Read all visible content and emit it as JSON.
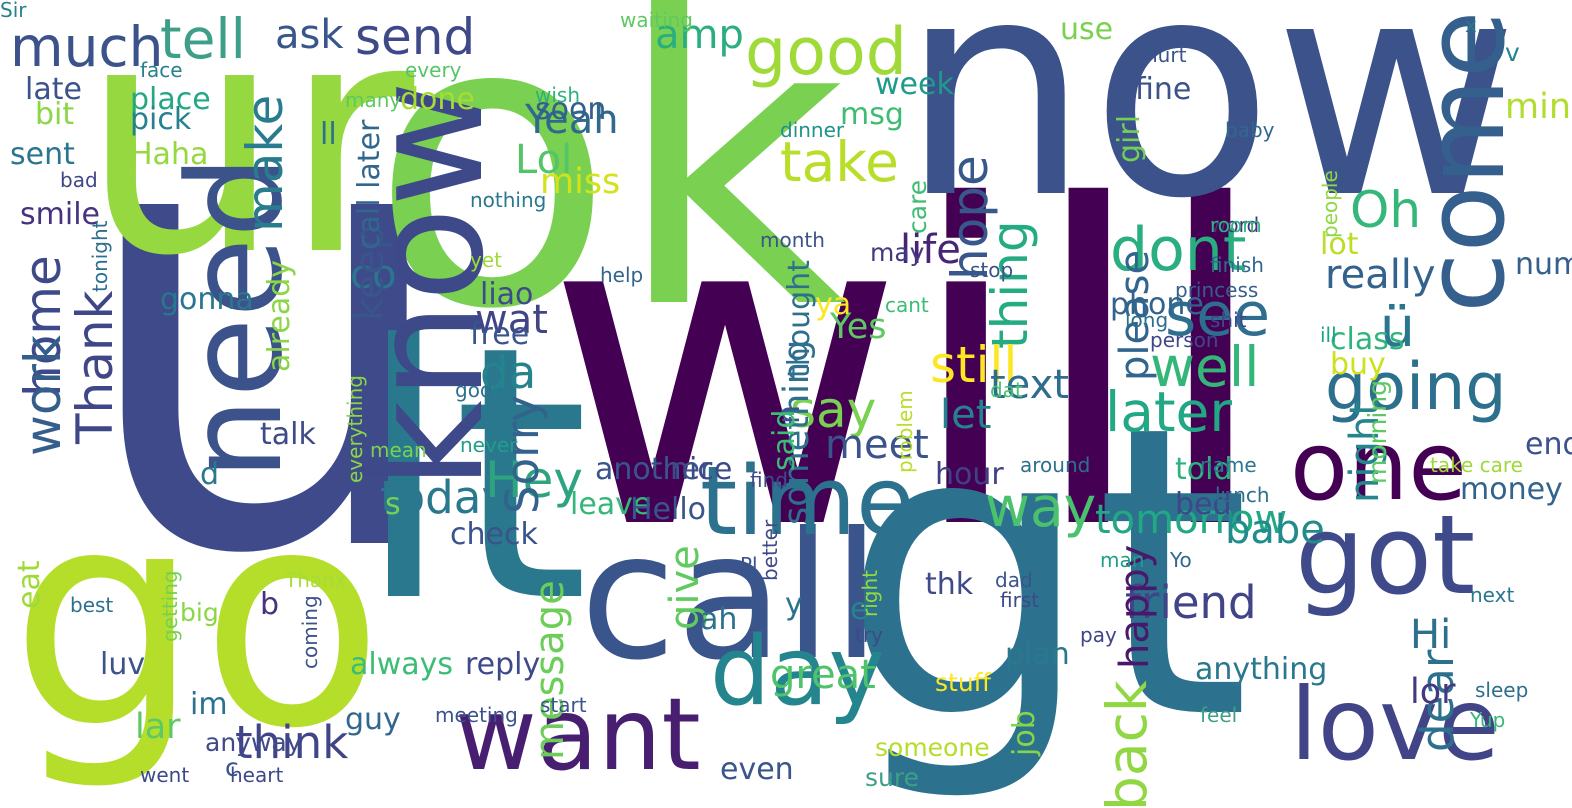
{
  "words": [
    {
      "text": "u",
      "color": "#3e4a89",
      "vertical": false
    },
    {
      "text": "will",
      "color": "#440154",
      "vertical": false
    },
    {
      "text": "now",
      "color": "#3b528b",
      "vertical": false
    },
    {
      "text": "ok",
      "color": "#7ad151",
      "vertical": false
    },
    {
      "text": "lt",
      "color": "#2a788e",
      "vertical": false
    },
    {
      "text": "gt",
      "color": "#2c728e",
      "vertical": false
    },
    {
      "text": "go",
      "color": "#b5de2b",
      "vertical": false
    },
    {
      "text": "ur",
      "color": "#95d840",
      "vertical": false
    },
    {
      "text": "call",
      "color": "#3a548c",
      "vertical": false
    },
    {
      "text": "know",
      "color": "#3e4989",
      "vertical": true
    },
    {
      "text": "need",
      "color": "#3b528b",
      "vertical": true
    },
    {
      "text": "come",
      "color": "#355f8d",
      "vertical": true
    },
    {
      "text": "got",
      "color": "#3e4a89",
      "vertical": false
    },
    {
      "text": "time",
      "color": "#2c728e",
      "vertical": false
    },
    {
      "text": "day",
      "color": "#25858e",
      "vertical": false
    },
    {
      "text": "want",
      "color": "#481f70",
      "vertical": false
    },
    {
      "text": "love",
      "color": "#414487",
      "vertical": false
    },
    {
      "text": "one",
      "color": "#440154",
      "vertical": false
    },
    {
      "text": "good",
      "color": "#a0da39",
      "vertical": false
    },
    {
      "text": "going",
      "color": "#2d708e",
      "vertical": false
    },
    {
      "text": "much",
      "color": "#3b528b",
      "vertical": false
    },
    {
      "text": "tell",
      "color": "#3e9f88",
      "vertical": false
    },
    {
      "text": "send",
      "color": "#3e4989",
      "vertical": false
    },
    {
      "text": "ask",
      "color": "#39568c",
      "vertical": false
    },
    {
      "text": "take",
      "color": "#b8de29",
      "vertical": false
    },
    {
      "text": "home",
      "color": "#3e4989",
      "vertical": true
    },
    {
      "text": "make",
      "color": "#287c8e",
      "vertical": true
    },
    {
      "text": "hope",
      "color": "#38588c",
      "vertical": true
    },
    {
      "text": "thing",
      "color": "#25ab82",
      "vertical": true
    },
    {
      "text": "dont",
      "color": "#29af7f",
      "vertical": false
    },
    {
      "text": "see",
      "color": "#2e6e8e",
      "vertical": false
    },
    {
      "text": "ü",
      "color": "#2a768e",
      "vertical": false
    },
    {
      "text": "Oh",
      "color": "#35b779",
      "vertical": false
    },
    {
      "text": "well",
      "color": "#34b679",
      "vertical": false
    },
    {
      "text": "later",
      "color": "#22a884",
      "vertical": false
    },
    {
      "text": "say",
      "color": "#7ad151",
      "vertical": false
    },
    {
      "text": "da",
      "color": "#25838e",
      "vertical": false
    },
    {
      "text": "work",
      "color": "#355e8d",
      "vertical": true
    },
    {
      "text": "Thank",
      "color": "#3f4788",
      "vertical": true
    },
    {
      "text": "Hey",
      "color": "#2ea37f",
      "vertical": false
    },
    {
      "text": "Sorry",
      "color": "#33628d",
      "vertical": true
    },
    {
      "text": "way",
      "color": "#4ac16d",
      "vertical": false
    },
    {
      "text": "still",
      "color": "#fde725",
      "vertical": false
    },
    {
      "text": "back",
      "color": "#90d743",
      "vertical": true
    },
    {
      "text": "think",
      "color": "#404588",
      "vertical": false
    },
    {
      "text": "today",
      "color": "#2a788e",
      "vertical": false
    },
    {
      "text": "give",
      "color": "#60ca60",
      "vertical": true
    },
    {
      "text": "friend",
      "color": "#414487",
      "vertical": false
    },
    {
      "text": "dear",
      "color": "#2d708e",
      "vertical": true
    },
    {
      "text": "lor",
      "color": "#453781",
      "vertical": false
    },
    {
      "text": "Hi",
      "color": "#2e6f8e",
      "vertical": false
    },
    {
      "text": "great",
      "color": "#4ec36b",
      "vertical": false
    },
    {
      "text": "tomorrow",
      "color": "#22a884",
      "vertical": false
    },
    {
      "text": "message",
      "color": "#6cce59",
      "vertical": true
    },
    {
      "text": "happy",
      "color": "#48186a",
      "vertical": true
    },
    {
      "text": "babe",
      "color": "#228c8d",
      "vertical": false
    },
    {
      "text": "night",
      "color": "#25858e",
      "vertical": true
    },
    {
      "text": "really",
      "color": "#33638d",
      "vertical": false
    },
    {
      "text": "text",
      "color": "#2f6c8e",
      "vertical": false
    },
    {
      "text": "please",
      "color": "#32658e",
      "vertical": true
    },
    {
      "text": "let",
      "color": "#27808e",
      "vertical": false
    },
    {
      "text": "life",
      "color": "#482475",
      "vertical": false
    },
    {
      "text": "meet",
      "color": "#3a538b",
      "vertical": false
    },
    {
      "text": "wat",
      "color": "#414487",
      "vertical": false
    },
    {
      "text": "Yeah",
      "color": "#31688e",
      "vertical": false
    },
    {
      "text": "Lol",
      "color": "#52c569",
      "vertical": false
    },
    {
      "text": "miss",
      "color": "#d2e21b",
      "vertical": false
    },
    {
      "text": "amp",
      "color": "#29af7f",
      "vertical": false
    },
    {
      "text": "something",
      "color": "#2e6f8e",
      "vertical": true
    },
    {
      "text": "Yes",
      "color": "#5ec962",
      "vertical": false
    },
    {
      "text": "co",
      "color": "#2b758e",
      "vertical": false
    },
    {
      "text": "keep",
      "color": "#3a548c",
      "vertical": true
    },
    {
      "text": "n",
      "color": "#3a548c",
      "vertical": true
    },
    {
      "text": "mind",
      "color": "#b0dd2f",
      "vertical": false
    },
    {
      "text": "said",
      "color": "#3dbc74",
      "vertical": true
    },
    {
      "text": "lot",
      "color": "#bade28",
      "vertical": false
    },
    {
      "text": "phone",
      "color": "#33638d",
      "vertical": false
    },
    {
      "text": "fine",
      "color": "#3b528b",
      "vertical": false
    },
    {
      "text": "msg",
      "color": "#3fbc73",
      "vertical": false
    },
    {
      "text": "week",
      "color": "#1e9b8a",
      "vertical": false
    },
    {
      "text": "done",
      "color": "#a8db34",
      "vertical": false
    },
    {
      "text": "place",
      "color": "#22a884",
      "vertical": false
    },
    {
      "text": "pick",
      "color": "#26818e",
      "vertical": false
    },
    {
      "text": "Haha",
      "color": "#95d840",
      "vertical": false
    },
    {
      "text": "soon",
      "color": "#355f8d",
      "vertical": false
    },
    {
      "text": "bit",
      "color": "#8bd646",
      "vertical": false
    },
    {
      "text": "late",
      "color": "#3b528b",
      "vertical": false
    },
    {
      "text": "sent",
      "color": "#2a768e",
      "vertical": false
    },
    {
      "text": "smile",
      "color": "#46327e",
      "vertical": false
    },
    {
      "text": "face",
      "color": "#26818e",
      "vertical": false
    },
    {
      "text": "every",
      "color": "#55c667",
      "vertical": false
    },
    {
      "text": "waiting",
      "color": "#5ec962",
      "vertical": false
    },
    {
      "text": "many",
      "color": "#5ec962",
      "vertical": false
    },
    {
      "text": "wish",
      "color": "#2db27d",
      "vertical": false
    },
    {
      "text": "dinner",
      "color": "#20928c",
      "vertical": false
    },
    {
      "text": "hurt",
      "color": "#3b528b",
      "vertical": false
    },
    {
      "text": "x",
      "color": "#2a778e",
      "vertical": false
    },
    {
      "text": "cant",
      "color": "#3dbc74",
      "vertical": false
    },
    {
      "text": "baby",
      "color": "#31688e",
      "vertical": false
    },
    {
      "text": "girl",
      "color": "#73d056",
      "vertical": true
    },
    {
      "text": "v",
      "color": "#25848e",
      "vertical": false
    },
    {
      "text": "people",
      "color": "#8fd744",
      "vertical": true
    },
    {
      "text": "use",
      "color": "#7ad151",
      "vertical": false
    },
    {
      "text": "call later",
      "color": "#31678e",
      "vertical": true
    },
    {
      "text": "ll",
      "color": "#2c728e",
      "vertical": false
    },
    {
      "text": "tonight",
      "color": "#2e6e8e",
      "vertical": true
    },
    {
      "text": "nothing",
      "color": "#2a788e",
      "vertical": false
    },
    {
      "text": "bad",
      "color": "#3f4788",
      "vertical": false
    },
    {
      "text": "problem",
      "color": "#b8de29",
      "vertical": true
    },
    {
      "text": "care",
      "color": "#3fbc73",
      "vertical": true
    },
    {
      "text": "may",
      "color": "#443983",
      "vertical": false
    },
    {
      "text": "yet",
      "color": "#a0da39",
      "vertical": false
    },
    {
      "text": "month",
      "color": "#3b528b",
      "vertical": false
    },
    {
      "text": "word",
      "color": "#46327e",
      "vertical": false
    },
    {
      "text": "finish",
      "color": "#31688e",
      "vertical": false
    },
    {
      "text": "room",
      "color": "#2fb47c",
      "vertical": false
    },
    {
      "text": "help",
      "color": "#32658e",
      "vertical": false
    },
    {
      "text": "liao",
      "color": "#3e4a89",
      "vertical": false
    },
    {
      "text": "free",
      "color": "#3a548c",
      "vertical": false
    },
    {
      "text": "gonna",
      "color": "#2a768e",
      "vertical": false
    },
    {
      "text": "already",
      "color": "#8bd646",
      "vertical": true
    },
    {
      "text": "thought",
      "color": "#2e6f8e",
      "vertical": true
    },
    {
      "text": "ya",
      "color": "#fde725",
      "vertical": false
    },
    {
      "text": "class",
      "color": "#2fb47c",
      "vertical": false
    },
    {
      "text": "buy",
      "color": "#cde11d",
      "vertical": false
    },
    {
      "text": "number",
      "color": "#355f8d",
      "vertical": false
    },
    {
      "text": "morning",
      "color": "#5ec962",
      "vertical": true
    },
    {
      "text": "princess",
      "color": "#355f8d",
      "vertical": false
    },
    {
      "text": "shit",
      "color": "#3f4788",
      "vertical": false
    },
    {
      "text": "long",
      "color": "#2e6e8e",
      "vertical": false
    },
    {
      "text": "ill",
      "color": "#1fa188",
      "vertical": false
    },
    {
      "text": "person",
      "color": "#404688",
      "vertical": false
    },
    {
      "text": "stop",
      "color": "#3b528b",
      "vertical": false
    },
    {
      "text": "everything",
      "color": "#8bd646",
      "vertical": true
    },
    {
      "text": "god",
      "color": "#2c728e",
      "vertical": false
    },
    {
      "text": "dat",
      "color": "#48c16e",
      "vertical": false
    },
    {
      "text": "talk",
      "color": "#3e4a89",
      "vertical": false
    },
    {
      "text": "d",
      "color": "#2a788e",
      "vertical": false
    },
    {
      "text": "mean",
      "color": "#7ad151",
      "vertical": false
    },
    {
      "text": "never",
      "color": "#1f9e89",
      "vertical": false
    },
    {
      "text": "another",
      "color": "#39568c",
      "vertical": false
    },
    {
      "text": "nice",
      "color": "#3e4989",
      "vertical": false
    },
    {
      "text": "hour",
      "color": "#423f85",
      "vertical": false
    },
    {
      "text": "told",
      "color": "#2db27d",
      "vertical": false
    },
    {
      "text": "around",
      "color": "#2d708e",
      "vertical": false
    },
    {
      "text": "name",
      "color": "#2a788e",
      "vertical": false
    },
    {
      "text": "take care",
      "color": "#9dd93b",
      "vertical": false
    },
    {
      "text": "end",
      "color": "#3b528b",
      "vertical": false
    },
    {
      "text": "s",
      "color": "#75d054",
      "vertical": false
    },
    {
      "text": "leave",
      "color": "#35b779",
      "vertical": false
    },
    {
      "text": "Hello",
      "color": "#3a548c",
      "vertical": false
    },
    {
      "text": "find",
      "color": "#3e4a89",
      "vertical": false
    },
    {
      "text": "bed",
      "color": "#3f4788",
      "vertical": false
    },
    {
      "text": "money",
      "color": "#33638d",
      "vertical": false
    },
    {
      "text": "lunch",
      "color": "#2e6f8e",
      "vertical": false
    },
    {
      "text": "check",
      "color": "#3b528b",
      "vertical": false
    },
    {
      "text": "better",
      "color": "#3e4a89",
      "vertical": true
    },
    {
      "text": "Pl",
      "color": "#3b528b",
      "vertical": false
    },
    {
      "text": "man",
      "color": "#1f9e89",
      "vertical": false
    },
    {
      "text": "Yo",
      "color": "#31688e",
      "vertical": false
    },
    {
      "text": "Thanx",
      "color": "#a8db34",
      "vertical": false
    },
    {
      "text": "eat",
      "color": "#a0da39",
      "vertical": true
    },
    {
      "text": "getting",
      "color": "#75d054",
      "vertical": true
    },
    {
      "text": "best",
      "color": "#2e6f8e",
      "vertical": false
    },
    {
      "text": "big",
      "color": "#8bd646",
      "vertical": false
    },
    {
      "text": "b",
      "color": "#46327e",
      "vertical": false
    },
    {
      "text": "coming",
      "color": "#3b528b",
      "vertical": true
    },
    {
      "text": "y",
      "color": "#2c728e",
      "vertical": false
    },
    {
      "text": "e",
      "color": "#25848e",
      "vertical": false
    },
    {
      "text": "thk",
      "color": "#3e4a89",
      "vertical": false
    },
    {
      "text": "right",
      "color": "#95d840",
      "vertical": true
    },
    {
      "text": "dad",
      "color": "#39568c",
      "vertical": false
    },
    {
      "text": "first",
      "color": "#3e4989",
      "vertical": false
    },
    {
      "text": "next",
      "color": "#2a788e",
      "vertical": false
    },
    {
      "text": "ah",
      "color": "#2c728e",
      "vertical": false
    },
    {
      "text": "try",
      "color": "#3e4989",
      "vertical": false
    },
    {
      "text": "pay",
      "color": "#414487",
      "vertical": false
    },
    {
      "text": "luv",
      "color": "#3b528b",
      "vertical": false
    },
    {
      "text": "always",
      "color": "#3dbc74",
      "vertical": false
    },
    {
      "text": "reply",
      "color": "#3e4989",
      "vertical": false
    },
    {
      "text": "plan",
      "color": "#2a788e",
      "vertical": false
    },
    {
      "text": "anything",
      "color": "#2a788e",
      "vertical": false
    },
    {
      "text": "sleep",
      "color": "#2e6e8e",
      "vertical": false
    },
    {
      "text": "Yup",
      "color": "#35b779",
      "vertical": false
    },
    {
      "text": "lar",
      "color": "#5ec962",
      "vertical": false
    },
    {
      "text": "im",
      "color": "#2c728e",
      "vertical": false
    },
    {
      "text": "guy",
      "color": "#31688e",
      "vertical": false
    },
    {
      "text": "stuff",
      "color": "#fde725",
      "vertical": false
    },
    {
      "text": "job",
      "color": "#86d549",
      "vertical": true
    },
    {
      "text": "feel",
      "color": "#3e9f88",
      "vertical": false
    },
    {
      "text": "meeting",
      "color": "#3b528b",
      "vertical": false
    },
    {
      "text": "start",
      "color": "#3a548c",
      "vertical": false
    },
    {
      "text": "anyway",
      "color": "#3e4a89",
      "vertical": false
    },
    {
      "text": "c",
      "color": "#3b528b",
      "vertical": false
    },
    {
      "text": "someone",
      "color": "#b5de2b",
      "vertical": false
    },
    {
      "text": "sure",
      "color": "#3e9f88",
      "vertical": false
    },
    {
      "text": "even",
      "color": "#3a548c",
      "vertical": false
    },
    {
      "text": "went",
      "color": "#3e4989",
      "vertical": false
    },
    {
      "text": "heart",
      "color": "#3e4989",
      "vertical": false
    },
    {
      "text": "Sir",
      "color": "#26818e",
      "vertical": false
    }
  ]
}
